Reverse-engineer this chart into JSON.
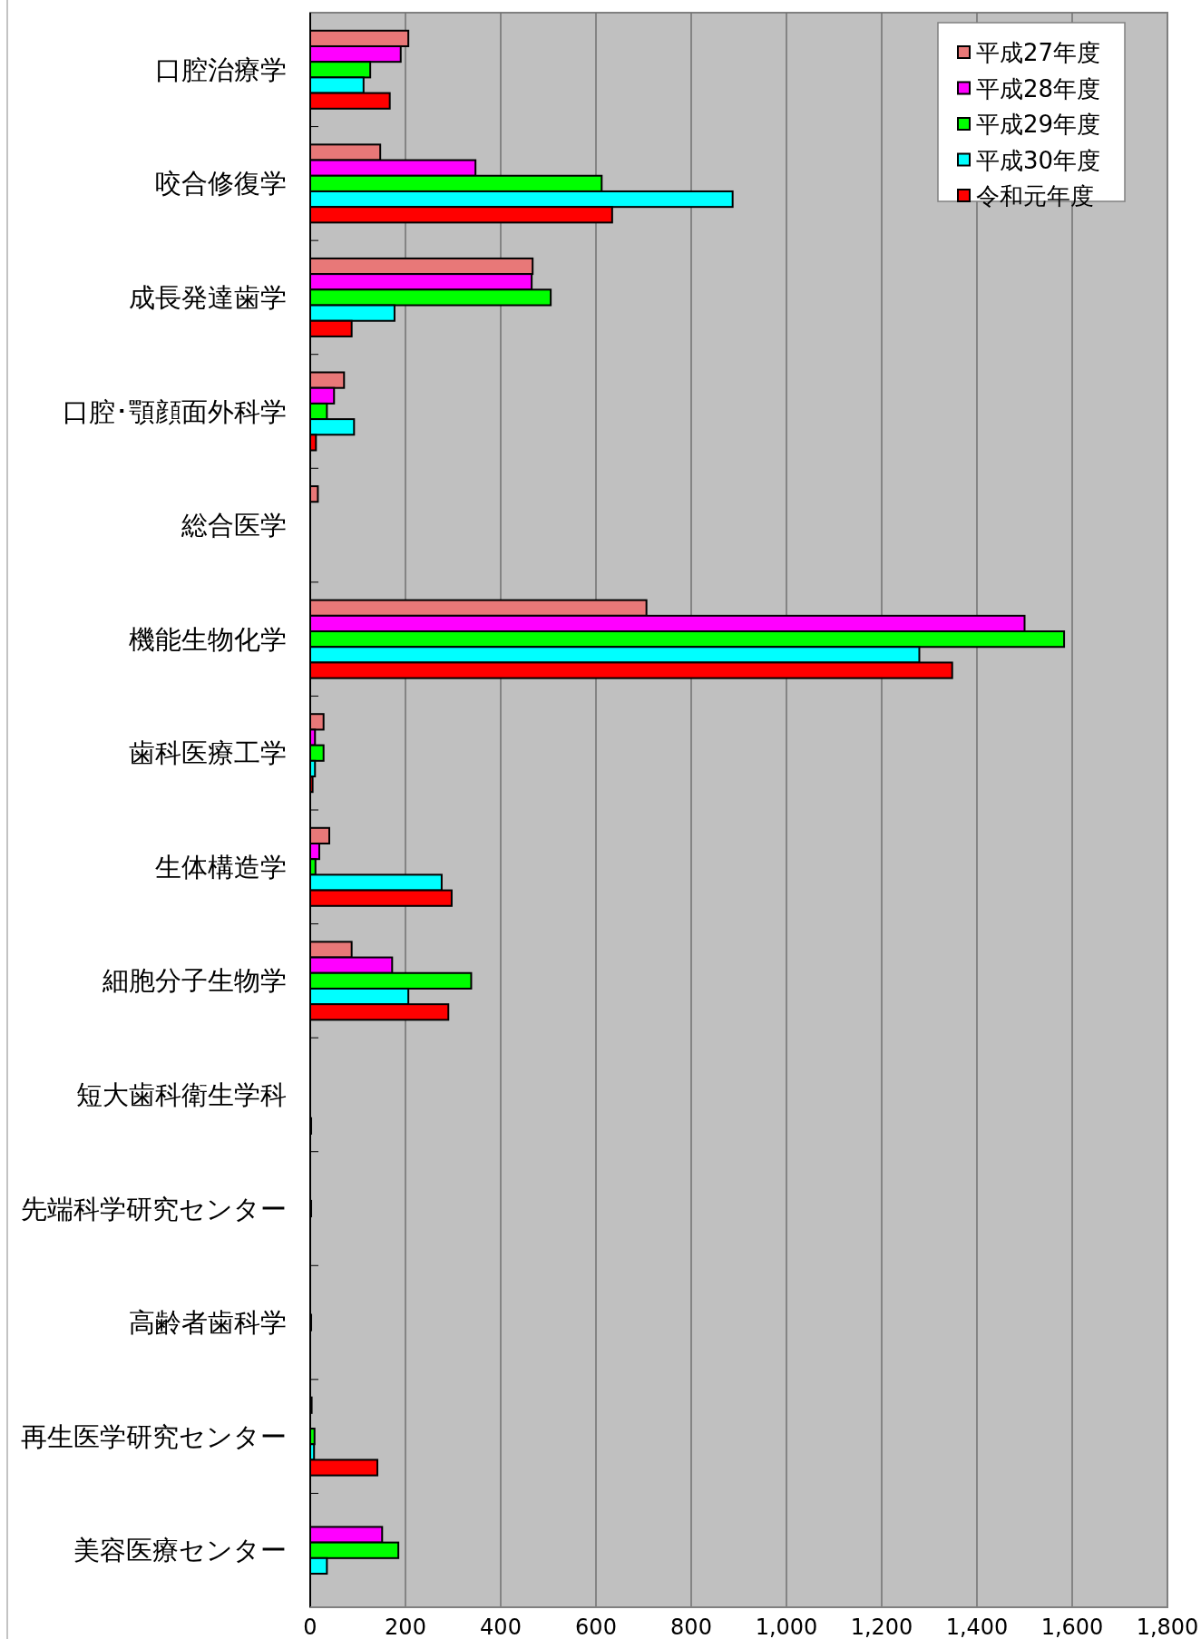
{
  "chart_data": {
    "type": "bar",
    "orientation": "horizontal",
    "categories": [
      "口腔治療学",
      "咬合修復学",
      "成長発達歯学",
      "口腔･顎顔面外科学",
      "総合医学",
      "機能生物化学",
      "歯科医療工学",
      "生体構造学",
      "細胞分子生物学",
      "短大歯科衛生学科",
      "先端科学研究センター",
      "高齢者歯科学",
      "再生医学研究センター",
      "美容医療センター"
    ],
    "series": [
      {
        "name": "平成27年度",
        "color": "#e87878",
        "values": [
          206,
          147,
          467,
          71,
          16,
          706,
          28,
          40,
          87,
          0,
          0,
          0,
          3,
          0
        ]
      },
      {
        "name": "平成28年度",
        "color": "#ff00ff",
        "values": [
          190,
          347,
          465,
          50,
          0,
          1500,
          10,
          19,
          172,
          0,
          0,
          0,
          0,
          151
        ]
      },
      {
        "name": "平成29年度",
        "color": "#00ff00",
        "values": [
          126,
          612,
          505,
          35,
          0,
          1583,
          28,
          11,
          338,
          0,
          2,
          2,
          9,
          185
        ]
      },
      {
        "name": "平成30年度",
        "color": "#00ffff",
        "values": [
          112,
          887,
          177,
          92,
          0,
          1279,
          10,
          276,
          206,
          0,
          0,
          0,
          8,
          35
        ]
      },
      {
        "name": "令和元年度",
        "color": "#ff0000",
        "values": [
          167,
          634,
          87,
          12,
          0,
          1348,
          5,
          297,
          290,
          2,
          0,
          0,
          141,
          0
        ]
      }
    ],
    "xlim": [
      0,
      1800
    ],
    "xticks": [
      0,
      200,
      400,
      600,
      800,
      {
        "value": 1000,
        "label": "1,000"
      },
      {
        "value": 1200,
        "label": "1,200"
      },
      {
        "value": 1400,
        "label": "1,400"
      },
      {
        "value": 1600,
        "label": "1,600"
      },
      {
        "value": 1800,
        "label": "1,800"
      }
    ],
    "grid": "x",
    "legend": "top right"
  }
}
